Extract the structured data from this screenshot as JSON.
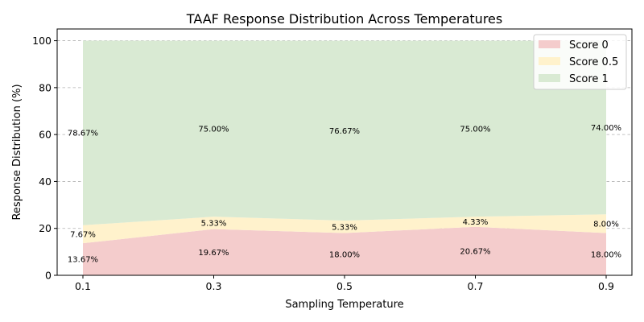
{
  "chart_data": {
    "type": "area",
    "stacked": true,
    "title": "TAAF Response Distribution Across Temperatures",
    "xlabel": "Sampling Temperature",
    "ylabel": "Response Distribution (%)",
    "x": [
      0.1,
      0.3,
      0.5,
      0.7,
      0.9
    ],
    "x_tick_labels": [
      "0.1",
      "0.3",
      "0.5",
      "0.7",
      "0.9"
    ],
    "ylim": [
      0,
      105
    ],
    "y_ticks": [
      0,
      20,
      40,
      60,
      80,
      100
    ],
    "y_tick_labels": [
      "0",
      "20",
      "40",
      "60",
      "80",
      "100"
    ],
    "grid": "y-dashed",
    "legend_position": "top-right",
    "series": [
      {
        "name": "Score 0",
        "values": [
          13.67,
          19.67,
          18.0,
          20.67,
          18.0
        ],
        "labels": [
          "13.67%",
          "19.67%",
          "18.00%",
          "20.67%",
          "18.00%"
        ],
        "color": "#f4cccc"
      },
      {
        "name": "Score 0.5",
        "values": [
          7.67,
          5.33,
          5.33,
          4.33,
          8.0
        ],
        "labels": [
          "7.67%",
          "5.33%",
          "5.33%",
          "4.33%",
          "8.00%"
        ],
        "color": "#fff2cc"
      },
      {
        "name": "Score 1",
        "values": [
          78.67,
          75.0,
          76.67,
          75.0,
          74.0
        ],
        "labels": [
          "78.67%",
          "75.00%",
          "76.67%",
          "75.00%",
          "74.00%"
        ],
        "color": "#d9ead3"
      }
    ]
  }
}
